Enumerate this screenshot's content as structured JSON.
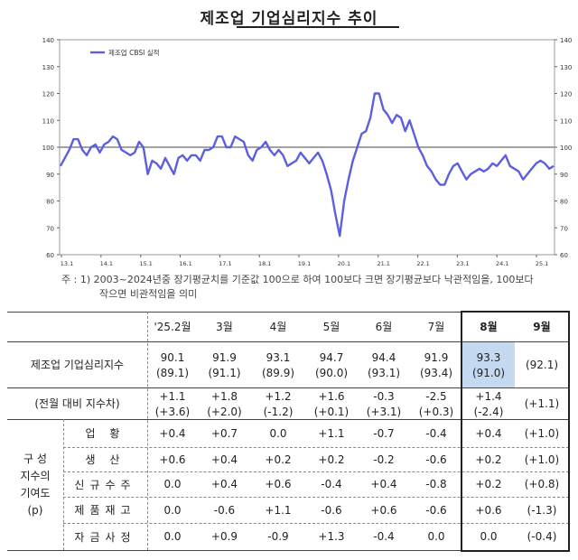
{
  "title": "제조업 기업심리지수 추이",
  "chart_data": {
    "type": "line",
    "title": "제조업 기업심리지수 추이",
    "series": [
      {
        "name": "제조업 CBSI 실적",
        "color": "#5b5fe0"
      }
    ],
    "legend": "top-left",
    "y_ticks": [
      "140",
      "130",
      "120",
      "110",
      "100",
      "90",
      "80",
      "70",
      "60"
    ],
    "ylim": [
      60,
      140
    ],
    "reference_line": 100,
    "x_ticks": [
      "13.1",
      "14.1",
      "15.1",
      "16.1",
      "17.1",
      "18.1",
      "19.1",
      "20.1",
      "21.1",
      "22.1",
      "23.1",
      "24.1",
      "25.1"
    ],
    "values": [
      93,
      96,
      99,
      103,
      103,
      99,
      97,
      100,
      101,
      98,
      101,
      102,
      104,
      103,
      99,
      98,
      97,
      98,
      102,
      100,
      90,
      95,
      94,
      92,
      96,
      93,
      90,
      96,
      97,
      95,
      97,
      97,
      95,
      99,
      99,
      100,
      104,
      104,
      100,
      100,
      104,
      103,
      102,
      97,
      95,
      99,
      100,
      102,
      99,
      97,
      99,
      97,
      93,
      94,
      95,
      98,
      96,
      94,
      96,
      98,
      95,
      90,
      84,
      75,
      67,
      80,
      88,
      95,
      100,
      105,
      106,
      111,
      120,
      120,
      114,
      112,
      109,
      112,
      111,
      106,
      110,
      105,
      100,
      97,
      93,
      91,
      88,
      86,
      86,
      90,
      93,
      94,
      91,
      88,
      90,
      91,
      92,
      91,
      92,
      94,
      93,
      95,
      97,
      93,
      92,
      91,
      88,
      90,
      92,
      94,
      95,
      94,
      92,
      93
    ]
  },
  "note": {
    "line1": "주 : 1) 2003~2024년중 장기평균치를 기준값 100으로 하여 100보다 크면 장기평균보다 낙관적임을, 100보다",
    "line2": "작으면 비관적임을 의미"
  },
  "table": {
    "headers": [
      "'25.2월",
      "3월",
      "4월",
      "5월",
      "6월",
      "7월",
      "8월",
      "9월"
    ],
    "rows": [
      {
        "label": "제조업 기업심리지수",
        "values": [
          [
            "90.1",
            "(89.1)"
          ],
          [
            "91.9",
            "(91.1)"
          ],
          [
            "93.1",
            "(89.9)"
          ],
          [
            "94.7",
            "(90.0)"
          ],
          [
            "94.4",
            "(93.1)"
          ],
          [
            "91.9",
            "(93.4)"
          ],
          [
            "93.3",
            "(91.0)"
          ],
          [
            "",
            "(92.1)"
          ]
        ]
      },
      {
        "label": "(전월 대비 지수차)",
        "values": [
          [
            "+1.1",
            "(+3.6)"
          ],
          [
            "+1.8",
            "(+2.0)"
          ],
          [
            "+1.2",
            "(-1.2)"
          ],
          [
            "+1.6",
            "(+0.1)"
          ],
          [
            "-0.3",
            "(+3.1)"
          ],
          [
            "-2.5",
            "(+0.3)"
          ],
          [
            "+1.4",
            "(-2.4)"
          ],
          [
            "",
            "(+1.1)"
          ]
        ]
      }
    ],
    "group_label": [
      "구 성",
      "지수의",
      "기여도",
      "(p)"
    ],
    "components": [
      {
        "label": "업 황",
        "values": [
          "+0.4",
          "+0.7",
          "0.0",
          "+1.1",
          "-0.7",
          "-0.4",
          "+0.4",
          "(+1.0)"
        ]
      },
      {
        "label": "생 산",
        "values": [
          "+0.6",
          "+0.4",
          "+0.2",
          "+0.2",
          "-0.2",
          "-0.6",
          "+0.2",
          "(+1.0)"
        ]
      },
      {
        "label": "신규수주",
        "values": [
          "0.0",
          "+0.4",
          "+0.6",
          "-0.4",
          "+0.4",
          "-0.8",
          "+0.2",
          "(+0.8)"
        ]
      },
      {
        "label": "제품재고",
        "values": [
          "0.0",
          "-0.6",
          "+1.1",
          "-0.6",
          "+0.6",
          "-0.6",
          "+0.6",
          "(-1.3)"
        ]
      },
      {
        "label": "자금사정",
        "values": [
          "0.0",
          "+0.9",
          "-0.9",
          "+1.3",
          "-0.4",
          "0.0",
          "0.0",
          "(-0.4)"
        ]
      }
    ]
  }
}
